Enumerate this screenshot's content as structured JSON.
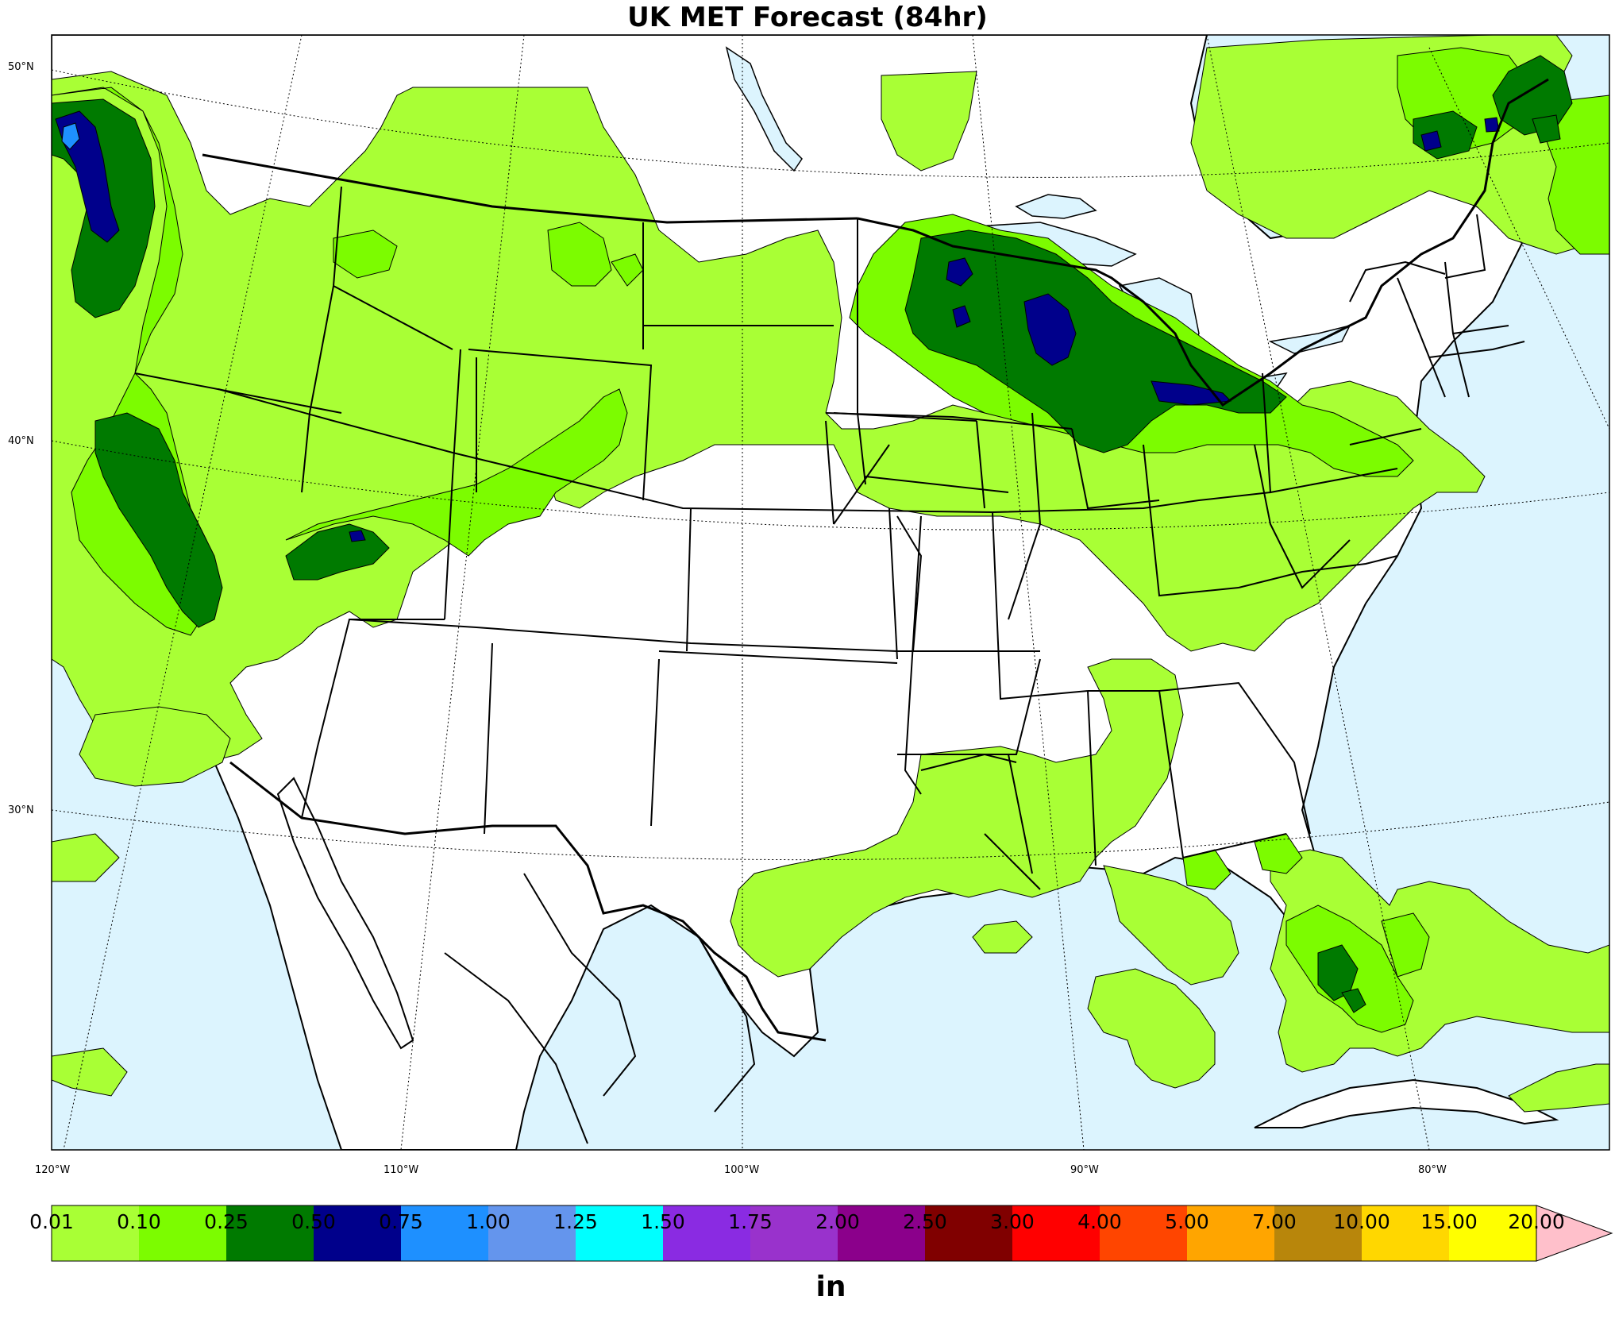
{
  "title": "UK MET Forecast (84hr)",
  "map": {
    "lat_labels": [
      "50°N",
      "40°N",
      "30°N"
    ],
    "lon_labels": [
      "120°W",
      "110°W",
      "100°W",
      "90°W",
      "80°W"
    ],
    "colors": {
      "ocean": "#dcf4fe",
      "land": "#ffffff"
    }
  },
  "colorbar": {
    "unit": "in",
    "ticks": [
      "0.01",
      "0.10",
      "0.25",
      "0.50",
      "0.75",
      "1.00",
      "1.25",
      "1.50",
      "1.75",
      "2.00",
      "2.50",
      "3.00",
      "4.00",
      "5.00",
      "7.00",
      "10.00",
      "15.00",
      "20.00"
    ],
    "colors": [
      "#a9ff35",
      "#7cfc00",
      "#007a00",
      "#00008b",
      "#1e90ff",
      "#6495ed",
      "#00ffff",
      "#8a2be2",
      "#9932cc",
      "#8b008b",
      "#800000",
      "#ff0000",
      "#ff4500",
      "#ffa500",
      "#b8860b",
      "#ffd700",
      "#ffff00"
    ],
    "extend_color": "#ffc0cb"
  }
}
